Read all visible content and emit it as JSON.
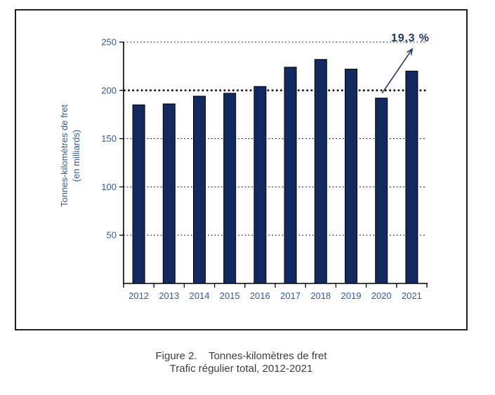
{
  "chart_data": {
    "type": "bar",
    "categories": [
      "2012",
      "2013",
      "2014",
      "2015",
      "2016",
      "2017",
      "2018",
      "2019",
      "2020",
      "2021"
    ],
    "values": [
      185,
      186,
      194,
      197,
      204,
      224,
      232,
      222,
      192,
      220
    ],
    "title": "",
    "xlabel": "",
    "ylabel_line1": "Tonnes-kilomètres de fret",
    "ylabel_line2": "(en milliards)",
    "yticks": [
      50,
      100,
      150,
      200,
      250
    ],
    "ylim": [
      0,
      250
    ],
    "grid": "horizontal dotted",
    "emphasized_gridline": 200,
    "legend": "none",
    "annotation": {
      "text": "19,3 %",
      "arrow_from_category": "2020"
    },
    "colors": {
      "bar_fill": "#122A60",
      "bar_outline": "#000000",
      "axis_text": "#2F5BA8",
      "axis_line": "#000000",
      "gridline": "#000000",
      "annotation": "#1F3864"
    }
  },
  "caption": {
    "line1": "Figure 2.    Tonnes-kilomètres de fret",
    "line2": "Trafic régulier total, 2012-2021"
  }
}
